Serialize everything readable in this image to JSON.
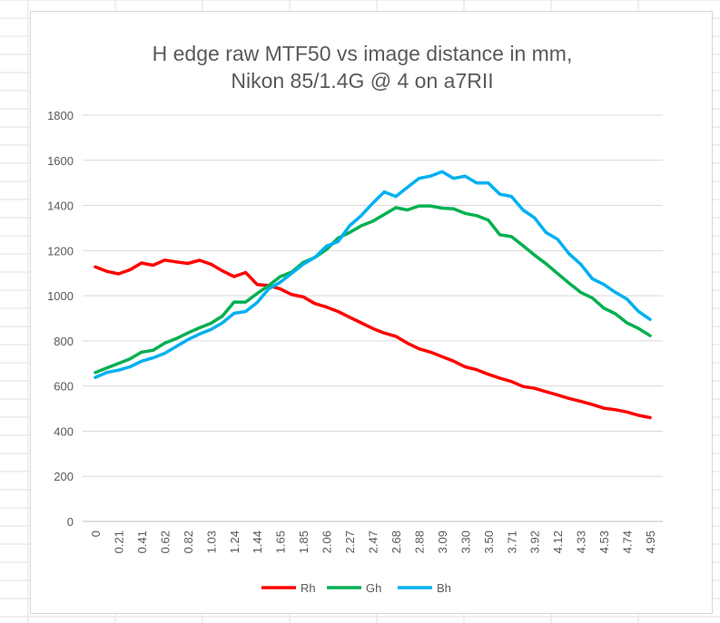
{
  "chart_data": {
    "type": "line",
    "title": [
      "H edge raw MTF50 vs image distance in mm,",
      "Nikon 85/1.4G @ 4 on a7RII"
    ],
    "xlabel": "",
    "ylabel": "",
    "ylim": [
      0,
      1800
    ],
    "yticks": [
      0,
      200,
      400,
      600,
      800,
      1000,
      1200,
      1400,
      1600,
      1800
    ],
    "grid": true,
    "legend_position": "bottom",
    "x": [
      0,
      0.1,
      0.21,
      0.31,
      0.41,
      0.52,
      0.62,
      0.72,
      0.82,
      0.93,
      1.03,
      1.13,
      1.24,
      1.34,
      1.44,
      1.55,
      1.65,
      1.75,
      1.85,
      1.96,
      2.06,
      2.16,
      2.27,
      2.37,
      2.47,
      2.58,
      2.68,
      2.78,
      2.88,
      2.99,
      3.09,
      3.19,
      3.3,
      3.4,
      3.5,
      3.61,
      3.71,
      3.81,
      3.92,
      4.02,
      4.12,
      4.23,
      4.33,
      4.43,
      4.53,
      4.64,
      4.74,
      4.84,
      4.95
    ],
    "xtick_labels": [
      "0",
      "0.21",
      "0.41",
      "0.62",
      "0.82",
      "1.03",
      "1.24",
      "1.44",
      "1.65",
      "1.85",
      "2.06",
      "2.27",
      "2.47",
      "2.68",
      "2.88",
      "3.09",
      "3.30",
      "3.50",
      "3.71",
      "3.92",
      "4.12",
      "4.33",
      "4.53",
      "4.74",
      "4.95"
    ],
    "series": [
      {
        "name": "Rh",
        "color": "#ff0000",
        "values": [
          1128,
          1108,
          1097,
          1115,
          1145,
          1135,
          1158,
          1150,
          1143,
          1157,
          1140,
          1110,
          1085,
          1103,
          1050,
          1045,
          1030,
          1005,
          995,
          965,
          950,
          930,
          905,
          880,
          855,
          835,
          820,
          790,
          765,
          750,
          730,
          710,
          685,
          672,
          652,
          635,
          620,
          598,
          590,
          575,
          560,
          545,
          532,
          518,
          502,
          495,
          485,
          470,
          460
        ]
      },
      {
        "name": "Gh",
        "color": "#00b050",
        "values": [
          660,
          680,
          700,
          720,
          750,
          758,
          790,
          810,
          835,
          858,
          878,
          910,
          972,
          972,
          1010,
          1045,
          1085,
          1105,
          1148,
          1170,
          1205,
          1255,
          1280,
          1310,
          1330,
          1360,
          1390,
          1380,
          1398,
          1398,
          1388,
          1385,
          1365,
          1355,
          1335,
          1270,
          1262,
          1222,
          1180,
          1142,
          1098,
          1055,
          1015,
          990,
          945,
          920,
          880,
          855,
          823
        ]
      },
      {
        "name": "Bh",
        "color": "#00b0f0",
        "values": [
          638,
          660,
          670,
          685,
          710,
          725,
          745,
          775,
          805,
          830,
          850,
          880,
          922,
          930,
          970,
          1030,
          1060,
          1100,
          1140,
          1170,
          1220,
          1240,
          1310,
          1355,
          1410,
          1460,
          1440,
          1480,
          1520,
          1530,
          1550,
          1520,
          1530,
          1500,
          1500,
          1450,
          1440,
          1380,
          1345,
          1280,
          1250,
          1185,
          1140,
          1075,
          1050,
          1015,
          985,
          930,
          895
        ]
      }
    ]
  }
}
